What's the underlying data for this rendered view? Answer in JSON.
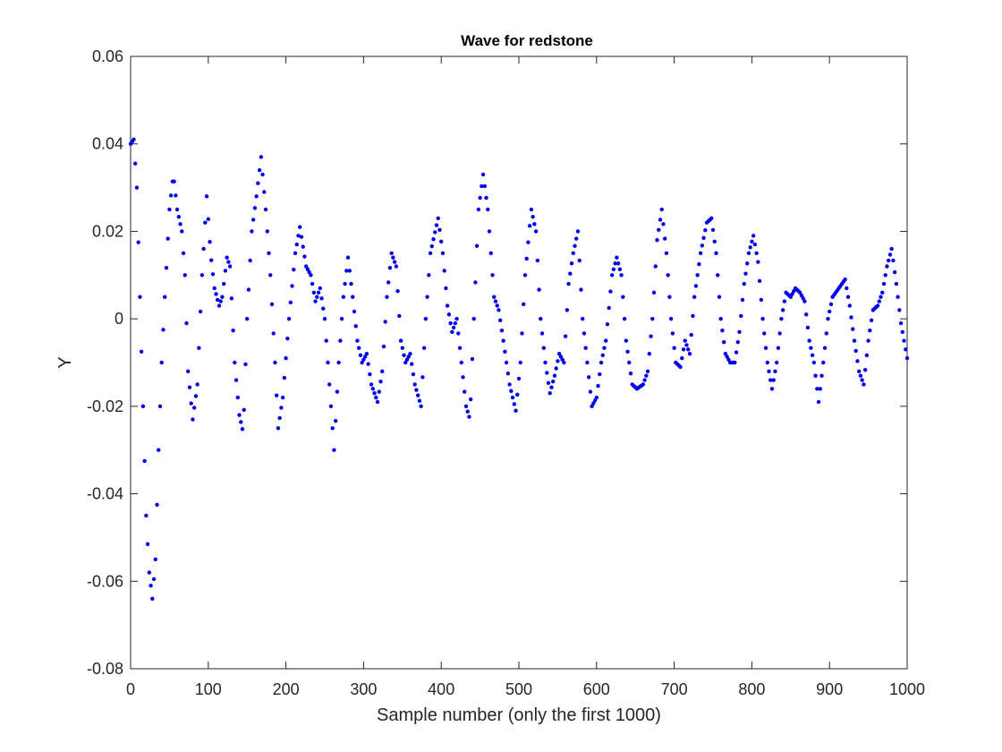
{
  "chart_data": {
    "type": "scatter",
    "title": "Wave for redstone",
    "xlabel": "Sample number (only the first 1000)",
    "ylabel": "Y",
    "xlim": [
      0,
      1000
    ],
    "ylim": [
      -0.08,
      0.06
    ],
    "xticks": [
      0,
      100,
      200,
      300,
      400,
      500,
      600,
      700,
      800,
      900,
      1000
    ],
    "xtick_labels": [
      "0",
      "100",
      "200",
      "300",
      "400",
      "500",
      "600",
      "700",
      "800",
      "900",
      "1000"
    ],
    "yticks": [
      -0.08,
      -0.06,
      -0.04,
      -0.02,
      0,
      0.02,
      0.04,
      0.06
    ],
    "ytick_labels": [
      "-0.08",
      "-0.06",
      "-0.04",
      "-0.02",
      "0",
      "0.02",
      "0.04",
      "0.06"
    ],
    "grid": false,
    "legend": "none",
    "marker_color": "#0000ee",
    "x_step": 2,
    "keypoints": [
      [
        0,
        0.04
      ],
      [
        4,
        0.041
      ],
      [
        8,
        0.03
      ],
      [
        12,
        0.005
      ],
      [
        16,
        -0.02
      ],
      [
        20,
        -0.045
      ],
      [
        24,
        -0.058
      ],
      [
        28,
        -0.064
      ],
      [
        32,
        -0.055
      ],
      [
        36,
        -0.03
      ],
      [
        40,
        -0.01
      ],
      [
        44,
        0.005
      ],
      [
        50,
        0.025
      ],
      [
        55,
        0.033
      ],
      [
        60,
        0.025
      ],
      [
        66,
        0.02
      ],
      [
        70,
        0.01
      ],
      [
        74,
        -0.012
      ],
      [
        80,
        -0.023
      ],
      [
        86,
        -0.015
      ],
      [
        92,
        0.01
      ],
      [
        98,
        0.028
      ],
      [
        103,
        0.015
      ],
      [
        108,
        0.007
      ],
      [
        114,
        0.003
      ],
      [
        118,
        0.005
      ],
      [
        124,
        0.014
      ],
      [
        128,
        0.012
      ],
      [
        134,
        -0.01
      ],
      [
        140,
        -0.022
      ],
      [
        145,
        -0.026
      ],
      [
        150,
        0.0
      ],
      [
        156,
        0.02
      ],
      [
        162,
        0.028
      ],
      [
        168,
        0.037
      ],
      [
        174,
        0.025
      ],
      [
        180,
        0.01
      ],
      [
        186,
        -0.01
      ],
      [
        190,
        -0.025
      ],
      [
        196,
        -0.018
      ],
      [
        204,
        0.0
      ],
      [
        212,
        0.015
      ],
      [
        218,
        0.021
      ],
      [
        226,
        0.012
      ],
      [
        232,
        0.01
      ],
      [
        238,
        0.004
      ],
      [
        244,
        0.007
      ],
      [
        250,
        0.0
      ],
      [
        256,
        -0.015
      ],
      [
        262,
        -0.03
      ],
      [
        268,
        -0.01
      ],
      [
        274,
        0.005
      ],
      [
        280,
        0.014
      ],
      [
        286,
        0.005
      ],
      [
        292,
        -0.005
      ],
      [
        298,
        -0.01
      ],
      [
        304,
        -0.008
      ],
      [
        310,
        -0.015
      ],
      [
        318,
        -0.019
      ],
      [
        324,
        -0.012
      ],
      [
        330,
        0.005
      ],
      [
        336,
        0.015
      ],
      [
        342,
        0.012
      ],
      [
        348,
        -0.005
      ],
      [
        354,
        -0.01
      ],
      [
        360,
        -0.008
      ],
      [
        366,
        -0.015
      ],
      [
        374,
        -0.02
      ],
      [
        380,
        0.0
      ],
      [
        386,
        0.015
      ],
      [
        396,
        0.023
      ],
      [
        402,
        0.015
      ],
      [
        408,
        0.003
      ],
      [
        414,
        -0.003
      ],
      [
        420,
        0.0
      ],
      [
        426,
        -0.01
      ],
      [
        432,
        -0.02
      ],
      [
        437,
        -0.023
      ],
      [
        442,
        0.0
      ],
      [
        448,
        0.025
      ],
      [
        454,
        0.033
      ],
      [
        460,
        0.025
      ],
      [
        468,
        0.005
      ],
      [
        474,
        0.002
      ],
      [
        480,
        -0.005
      ],
      [
        488,
        -0.015
      ],
      [
        496,
        -0.021
      ],
      [
        502,
        -0.01
      ],
      [
        508,
        0.01
      ],
      [
        516,
        0.025
      ],
      [
        522,
        0.02
      ],
      [
        528,
        0.0
      ],
      [
        534,
        -0.01
      ],
      [
        540,
        -0.017
      ],
      [
        546,
        -0.013
      ],
      [
        552,
        -0.008
      ],
      [
        558,
        -0.01
      ],
      [
        564,
        0.008
      ],
      [
        570,
        0.015
      ],
      [
        576,
        0.02
      ],
      [
        582,
        0.0
      ],
      [
        588,
        -0.01
      ],
      [
        594,
        -0.02
      ],
      [
        600,
        -0.018
      ],
      [
        606,
        -0.01
      ],
      [
        612,
        -0.005
      ],
      [
        620,
        0.01
      ],
      [
        626,
        0.014
      ],
      [
        632,
        0.01
      ],
      [
        638,
        -0.005
      ],
      [
        646,
        -0.015
      ],
      [
        652,
        -0.016
      ],
      [
        660,
        -0.015
      ],
      [
        666,
        -0.012
      ],
      [
        672,
        0.0
      ],
      [
        678,
        0.018
      ],
      [
        684,
        0.025
      ],
      [
        690,
        0.015
      ],
      [
        696,
        0.0
      ],
      [
        702,
        -0.01
      ],
      [
        708,
        -0.011
      ],
      [
        714,
        -0.005
      ],
      [
        720,
        -0.008
      ],
      [
        726,
        0.005
      ],
      [
        734,
        0.015
      ],
      [
        742,
        0.022
      ],
      [
        748,
        0.023
      ],
      [
        754,
        0.015
      ],
      [
        760,
        0.0
      ],
      [
        766,
        -0.008
      ],
      [
        772,
        -0.01
      ],
      [
        778,
        -0.01
      ],
      [
        784,
        -0.003
      ],
      [
        790,
        0.008
      ],
      [
        796,
        0.015
      ],
      [
        802,
        0.019
      ],
      [
        808,
        0.013
      ],
      [
        814,
        0.0
      ],
      [
        820,
        -0.01
      ],
      [
        826,
        -0.016
      ],
      [
        832,
        -0.01
      ],
      [
        838,
        0.0
      ],
      [
        844,
        0.006
      ],
      [
        850,
        0.005
      ],
      [
        856,
        0.007
      ],
      [
        862,
        0.006
      ],
      [
        868,
        0.004
      ],
      [
        874,
        -0.005
      ],
      [
        880,
        -0.01
      ],
      [
        886,
        -0.019
      ],
      [
        892,
        -0.01
      ],
      [
        898,
        0.0
      ],
      [
        904,
        0.005
      ],
      [
        912,
        0.007
      ],
      [
        920,
        0.009
      ],
      [
        926,
        0.003
      ],
      [
        932,
        -0.005
      ],
      [
        938,
        -0.012
      ],
      [
        944,
        -0.015
      ],
      [
        950,
        -0.005
      ],
      [
        956,
        0.002
      ],
      [
        962,
        0.003
      ],
      [
        968,
        0.006
      ],
      [
        974,
        0.012
      ],
      [
        980,
        0.016
      ],
      [
        986,
        0.008
      ],
      [
        992,
        -0.001
      ],
      [
        998,
        -0.007
      ],
      [
        1000,
        -0.009
      ]
    ]
  }
}
